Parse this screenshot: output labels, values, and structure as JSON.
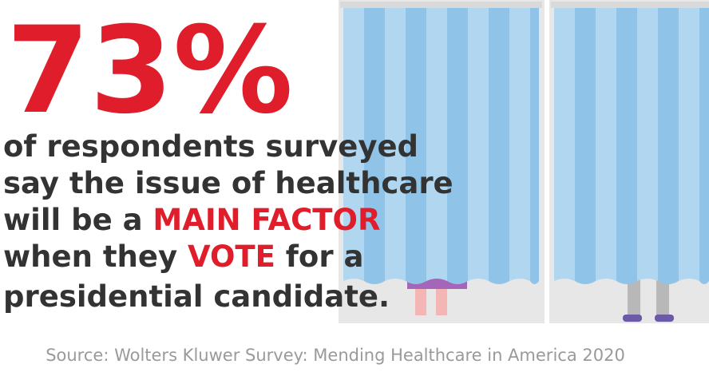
{
  "headline": {
    "stat": "73%",
    "lines": [
      [
        "of respondents surveyed"
      ],
      [
        "say the issue of healthcare"
      ],
      [
        "will be a ",
        "MAIN FACTOR"
      ],
      [
        "when they ",
        "VOTE",
        " for a"
      ],
      [
        "presidential candidate."
      ]
    ]
  },
  "source": "Source: Wolters Kluwer Survey: Mending Healthcare in America 2020"
}
